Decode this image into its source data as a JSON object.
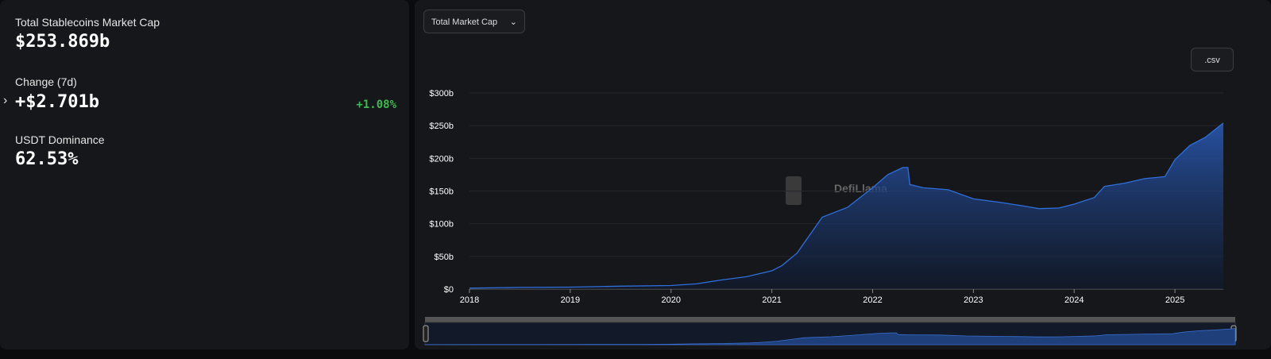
{
  "stats": {
    "total_label": "Total Stablecoins Market Cap",
    "total_value": "$253.869b",
    "change_label": "Change (7d)",
    "change_value": "+$2.701b",
    "change_pct": "+1.08%",
    "dominance_label": "USDT Dominance",
    "dominance_value": "62.53%"
  },
  "controls": {
    "dropdown": "Total Market Cap",
    "csv": ".csv",
    "watermark": "DefiLlama"
  },
  "chart_data": {
    "type": "area",
    "color": "#2f6fdc",
    "x": [
      2018.0,
      2018.5,
      2019.0,
      2019.5,
      2020.0,
      2020.25,
      2020.5,
      2020.75,
      2021.0,
      2021.1,
      2021.25,
      2021.4,
      2021.5,
      2021.75,
      2022.0,
      2022.15,
      2022.3,
      2022.35,
      2022.37,
      2022.5,
      2022.75,
      2023.0,
      2023.25,
      2023.5,
      2023.65,
      2023.85,
      2024.0,
      2024.2,
      2024.3,
      2024.5,
      2024.7,
      2024.9,
      2025.0,
      2025.15,
      2025.3,
      2025.48
    ],
    "values": [
      1.5,
      2.5,
      3,
      4.5,
      5.5,
      8,
      14,
      19,
      28,
      36,
      55,
      88,
      110,
      125,
      155,
      175,
      186,
      186,
      160,
      155,
      152,
      138,
      133,
      127,
      123,
      124,
      130,
      140,
      157,
      162,
      169,
      172,
      198,
      220,
      232,
      254
    ],
    "xlim": [
      2018.0,
      2025.48
    ],
    "ylim": [
      0,
      300
    ],
    "xticks": [
      2018,
      2019,
      2020,
      2021,
      2022,
      2023,
      2024,
      2025
    ],
    "yticks": [
      {
        "value": 0,
        "label": "$0"
      },
      {
        "value": 50,
        "label": "$50b"
      },
      {
        "value": 100,
        "label": "$100b"
      },
      {
        "value": 150,
        "label": "$150b"
      },
      {
        "value": 200,
        "label": "$200b"
      },
      {
        "value": 250,
        "label": "$250b"
      },
      {
        "value": 300,
        "label": "$300b"
      }
    ],
    "grid": true
  }
}
